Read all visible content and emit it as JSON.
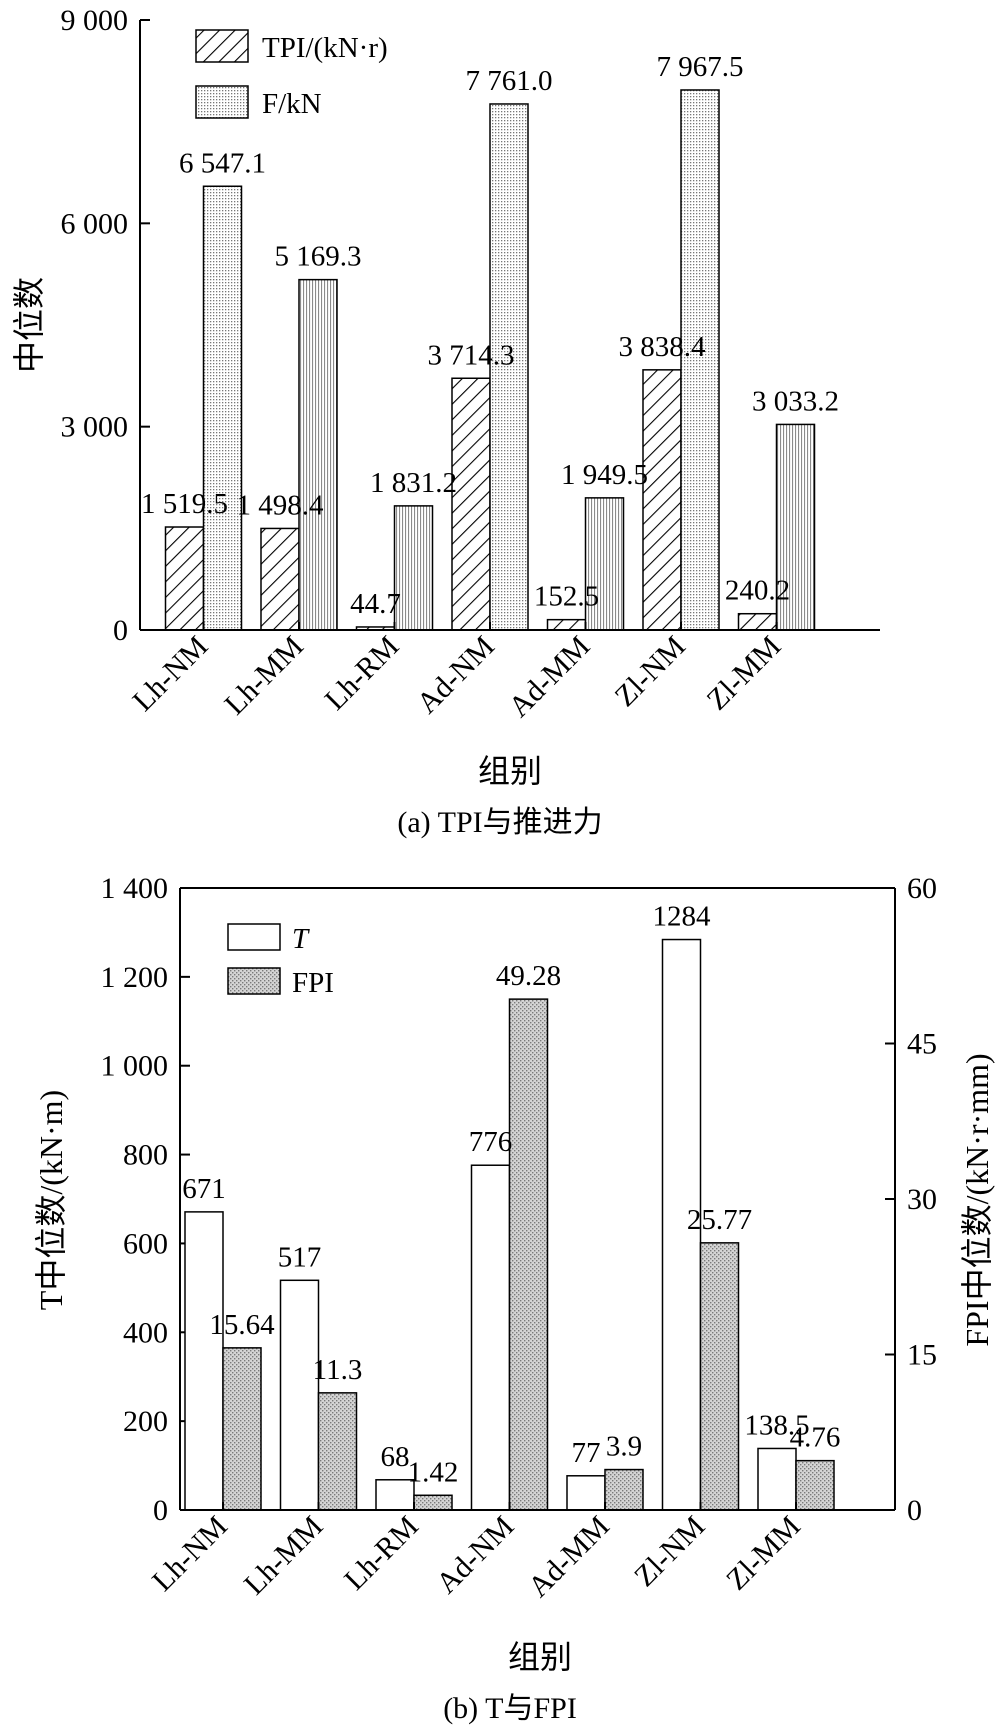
{
  "chart_data": [
    {
      "type": "bar",
      "caption": "(a) TPI与推进力",
      "xlabel": "组别",
      "ylabel": "中位数",
      "ylim": [
        0,
        9000
      ],
      "y_ticks": [
        {
          "value": 0,
          "label": "0"
        },
        {
          "value": 3000,
          "label": "3 000"
        },
        {
          "value": 6000,
          "label": "6 000"
        },
        {
          "value": 9000,
          "label": "9 000"
        }
      ],
      "categories": [
        "Lh-NM",
        "Lh-MM",
        "Lh-RM",
        "Ad-NM",
        "Ad-MM",
        "Zl-NM",
        "Zl-MM"
      ],
      "legend_position": "top-left",
      "series": [
        {
          "name": "TPI/(kN·r)",
          "values": [
            1519.5,
            1498.4,
            44.7,
            3714.3,
            152.5,
            3838.4,
            240.2
          ],
          "labels": [
            "1 519.5",
            "1 498.4",
            "44.7",
            "3 714.3",
            "152.5",
            "3 838.4",
            "240.2"
          ]
        },
        {
          "name": "F/kN",
          "values": [
            6547.1,
            5169.3,
            1831.2,
            7761.0,
            1949.5,
            7967.5,
            3033.2
          ],
          "labels": [
            "6 547.1",
            "5 169.3",
            "1 831.2",
            "7 761.0",
            "1 949.5",
            "7 967.5",
            "3 033.2"
          ]
        }
      ]
    },
    {
      "type": "bar",
      "caption": "(b) T与FPI",
      "xlabel": "组别",
      "ylabel": "T中位数/(kN·m)",
      "ylabel_right": "FPI中位数/(kN·r·mm)",
      "ylim": [
        0,
        1400
      ],
      "ylim_right": [
        0,
        60
      ],
      "y_ticks": [
        {
          "value": 0,
          "label": "0"
        },
        {
          "value": 200,
          "label": "200"
        },
        {
          "value": 400,
          "label": "400"
        },
        {
          "value": 600,
          "label": "600"
        },
        {
          "value": 800,
          "label": "800"
        },
        {
          "value": 1000,
          "label": "1 000"
        },
        {
          "value": 1200,
          "label": "1 200"
        },
        {
          "value": 1400,
          "label": "1 400"
        }
      ],
      "y_ticks_right": [
        {
          "value": 0,
          "label": "0"
        },
        {
          "value": 15,
          "label": "15"
        },
        {
          "value": 30,
          "label": "30"
        },
        {
          "value": 45,
          "label": "45"
        },
        {
          "value": 60,
          "label": "60"
        }
      ],
      "categories": [
        "Lh-NM",
        "Lh-MM",
        "Lh-RM",
        "Ad-NM",
        "Ad-MM",
        "Zl-NM",
        "Zl-MM"
      ],
      "legend_position": "top-left",
      "series": [
        {
          "name": "T",
          "axis": "left",
          "values": [
            671,
            517,
            68,
            776,
            77,
            1284,
            138.5
          ],
          "labels": [
            "671",
            "517",
            "68",
            "776",
            "77",
            "1284",
            "138.5"
          ]
        },
        {
          "name": "FPI",
          "axis": "right",
          "values": [
            15.64,
            11.3,
            1.42,
            49.28,
            3.9,
            25.77,
            4.76
          ],
          "labels": [
            "15.64",
            "11.3",
            "1.42",
            "49.28",
            "3.9",
            "25.77",
            "4.76"
          ]
        }
      ]
    }
  ]
}
